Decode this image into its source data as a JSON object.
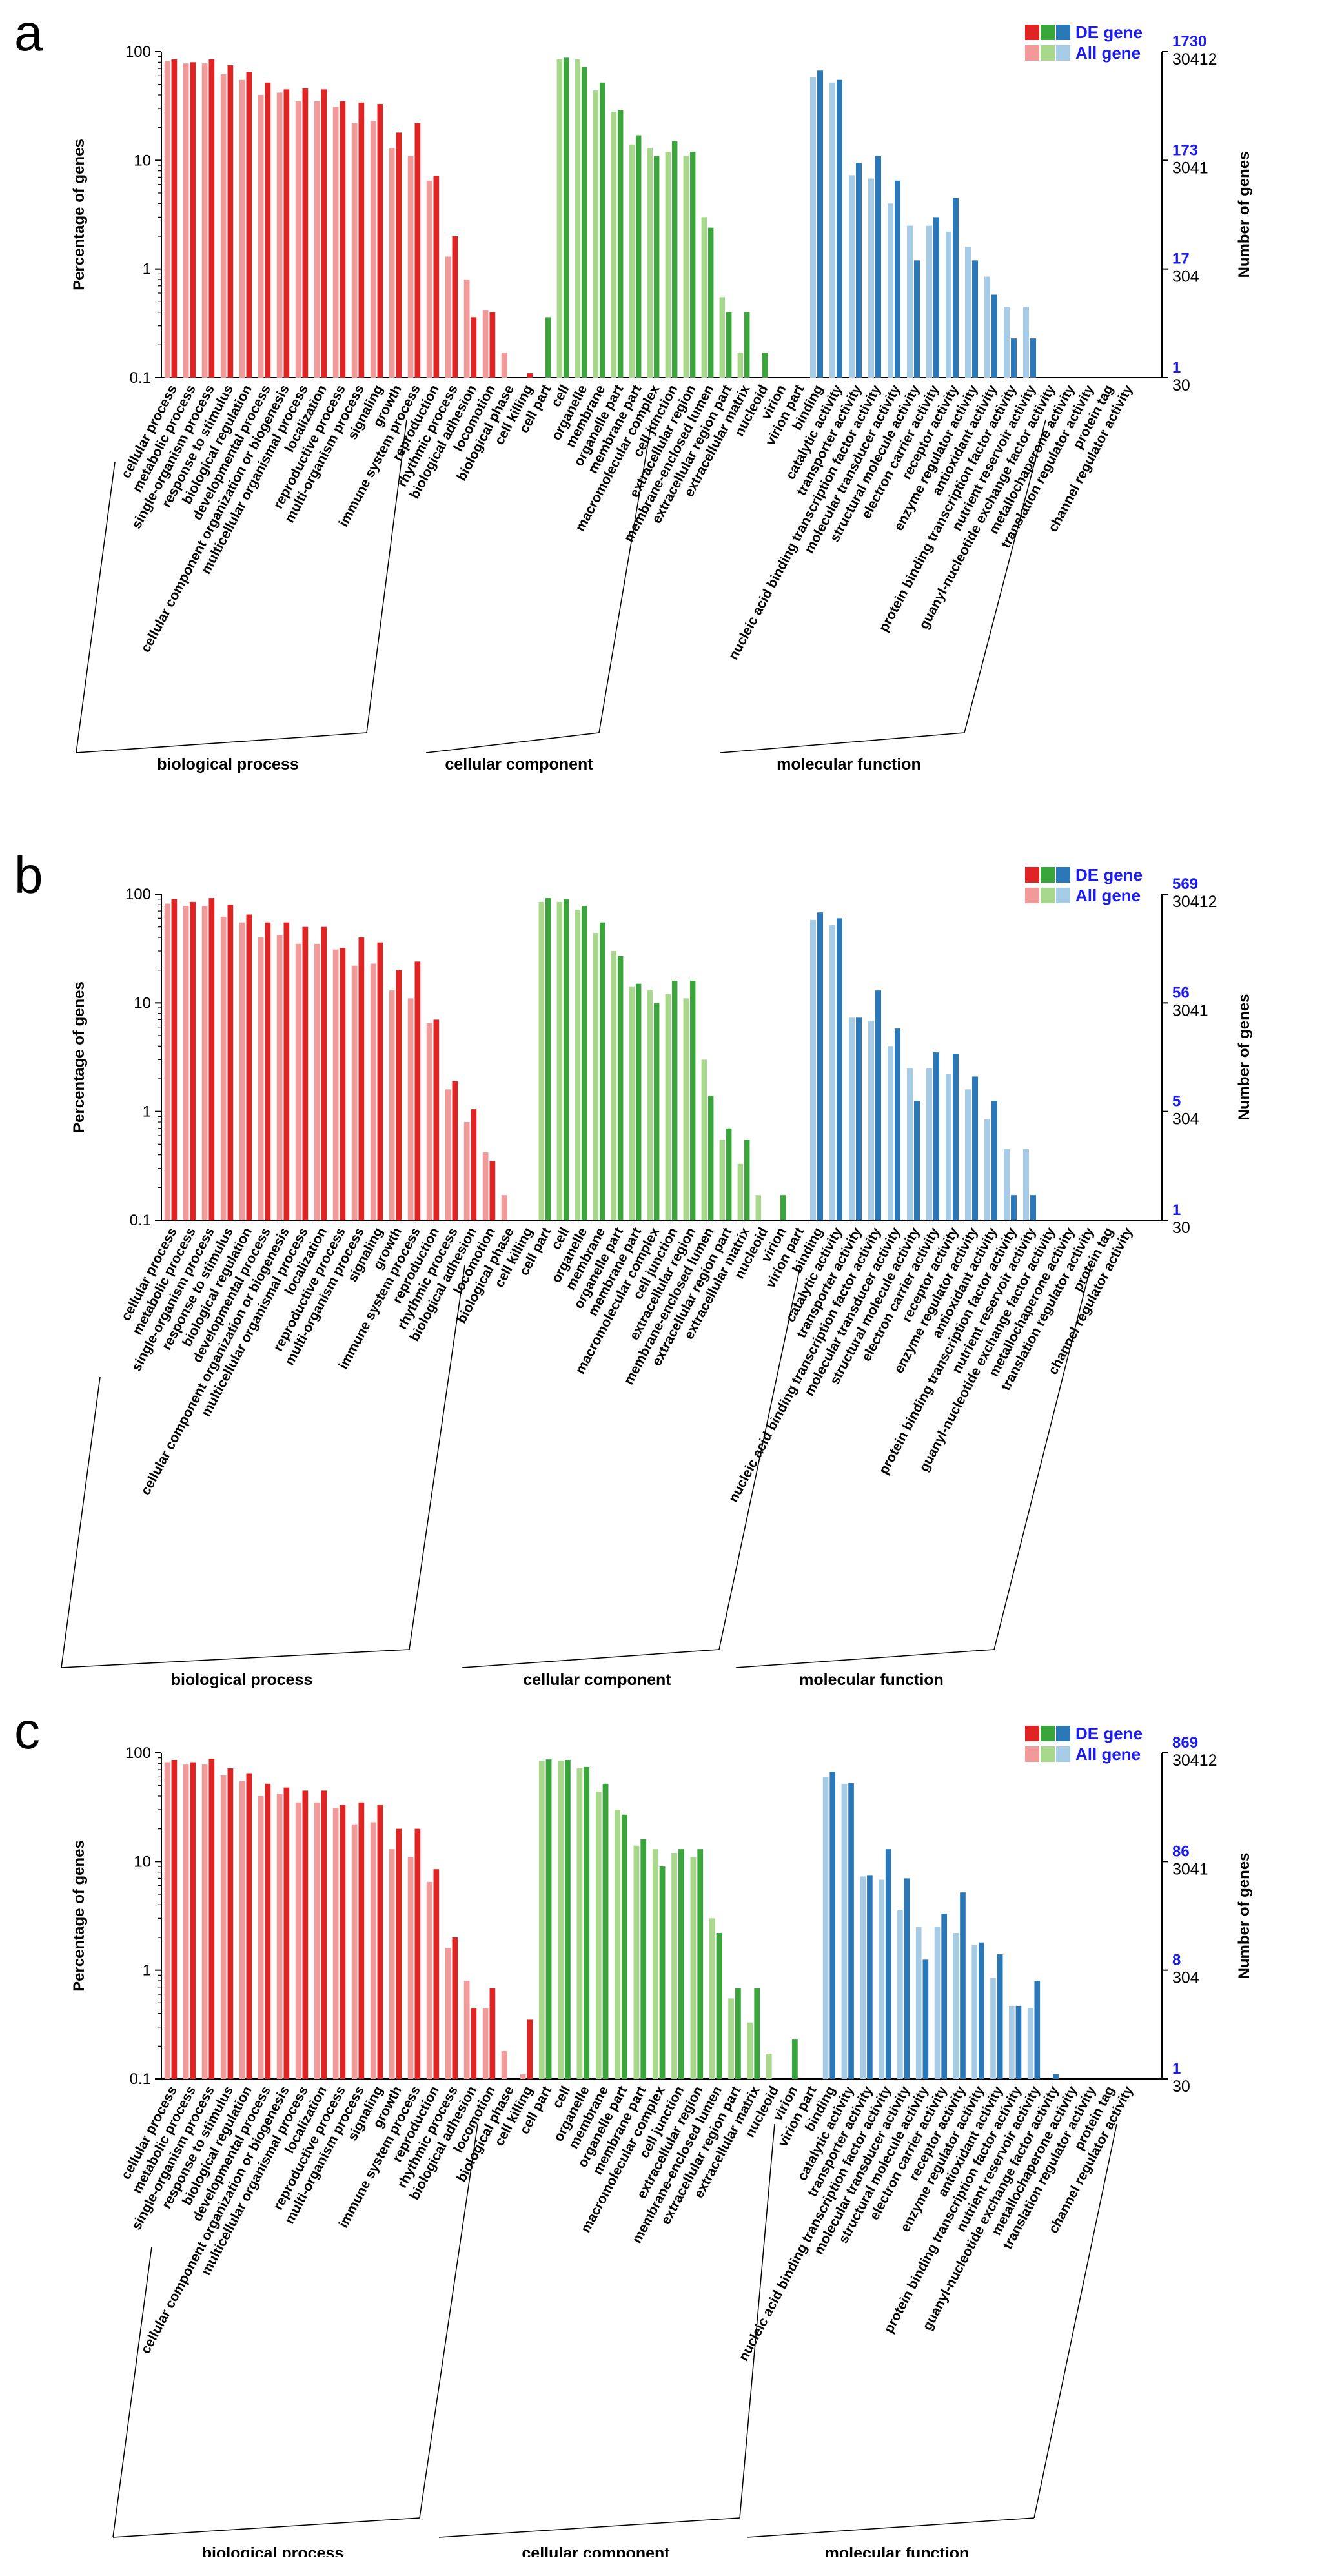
{
  "figure": {
    "colors": {
      "bp_de": "#e02424",
      "bp_all": "#f29a9a",
      "cc_de": "#3aa53a",
      "cc_all": "#a8d88c",
      "mf_de": "#2a78b8",
      "mf_all": "#a6cbe6",
      "legend_text": "#1c1cf0",
      "axis": "#000000"
    },
    "legend": {
      "de_label": "DE gene",
      "all_label": "All gene"
    },
    "left_axis_title": "Percentage of genes",
    "right_axis_title": "Number of genes",
    "left_ticks": [
      "100",
      "10",
      "1",
      "0.1"
    ],
    "all_gene_ticks": [
      "30412",
      "3041",
      "304",
      "30"
    ]
  },
  "chart_data": [
    {
      "type": "bar",
      "panel": "a",
      "title": "",
      "ylabel": "Percentage of genes",
      "y2label": "Number of genes",
      "yscale": "log",
      "ylim": [
        0.1,
        100
      ],
      "de_ticks": [
        "1730",
        "173",
        "17",
        "1"
      ],
      "groups": [
        {
          "name": "biological process",
          "key": "bp",
          "categories": [
            "cellular process",
            "metabolic process",
            "single-organism process",
            "response to stimulus",
            "biological regulation",
            "developmental process",
            "cellular component organization or biogenesis",
            "multicellular organismal process",
            "localization",
            "reproductive process",
            "multi-organism process",
            "signaling",
            "growth",
            "immune system process",
            "reproduction",
            "rhythmic process",
            "biological adhesion",
            "locomotion",
            "biological phase",
            "cell killing"
          ],
          "all": [
            82,
            78,
            78,
            62,
            55,
            40,
            42,
            35,
            35,
            31,
            22,
            23,
            13,
            11,
            6.5,
            1.3,
            0.8,
            0.42,
            0.17,
            0.1
          ],
          "de": [
            85,
            80,
            85,
            75,
            65,
            52,
            45,
            46,
            45,
            35,
            34,
            33,
            18,
            22,
            7.2,
            2.0,
            0.36,
            0.4,
            0,
            0.11
          ]
        },
        {
          "name": "cellular component",
          "key": "cc",
          "categories": [
            "cell part",
            "cell",
            "organelle",
            "membrane",
            "organelle part",
            "membrane part",
            "macromolecular complex",
            "cell junction",
            "extracellular region",
            "membrane-enclosed lumen",
            "extracellular region part",
            "extracellular matrix",
            "nucleoid",
            "virion",
            "virion part"
          ],
          "all": [
            0,
            85,
            85,
            44,
            28,
            14,
            13,
            12,
            11,
            3,
            0.55,
            0.17,
            0.1,
            0,
            0
          ],
          "de": [
            0.36,
            88,
            72,
            52,
            29,
            17,
            11,
            15,
            12,
            2.4,
            0.4,
            0.4,
            0.17,
            0,
            0
          ]
        },
        {
          "name": "molecular function",
          "key": "mf",
          "categories": [
            "binding",
            "catalytic activity",
            "transporter activity",
            "nucleic acid binding transcription factor activity",
            "molecular transducer activity",
            "structural molecule activity",
            "electron carrier activity",
            "receptor activity",
            "enzyme regulator activity",
            "antioxidant activity",
            "protein binding transcription factor activity",
            "nutrient reservoir activity",
            "guanyl-nucleotide exchange factor activity",
            "metallochaperone activity",
            "translation regulator activity",
            "protein tag",
            "channel regulator activity"
          ],
          "all": [
            58,
            52,
            7.3,
            6.8,
            4.0,
            2.5,
            2.5,
            2.2,
            1.6,
            0.85,
            0.45,
            0.45,
            0,
            0,
            0,
            0,
            0
          ],
          "de": [
            67,
            55,
            9.5,
            11,
            6.5,
            1.2,
            3.0,
            4.5,
            1.2,
            0.58,
            0.23,
            0.23,
            0,
            0,
            0,
            0,
            0
          ]
        }
      ]
    },
    {
      "type": "bar",
      "panel": "b",
      "title": "",
      "ylabel": "Percentage of genes",
      "y2label": "Number of genes",
      "yscale": "log",
      "ylim": [
        0.1,
        100
      ],
      "de_ticks": [
        "569",
        "56",
        "5",
        "1"
      ],
      "groups": [
        {
          "name": "biological process",
          "key": "bp",
          "categories": [
            "cellular process",
            "metabolic process",
            "single-organism process",
            "response to stimulus",
            "biological regulation",
            "developmental process",
            "cellular component organization or biogenesis",
            "multicellular organismal process",
            "localization",
            "reproductive process",
            "multi-organism process",
            "signaling",
            "growth",
            "immune system process",
            "reproduction",
            "rhythmic process",
            "biological adhesion",
            "locomotion",
            "biological phase",
            "cell killing"
          ],
          "all": [
            82,
            78,
            78,
            62,
            55,
            40,
            42,
            35,
            35,
            31,
            22,
            23,
            13,
            11,
            6.5,
            1.6,
            0.8,
            0.42,
            0.17,
            0
          ],
          "de": [
            90,
            85,
            92,
            80,
            65,
            55,
            55,
            50,
            50,
            32,
            40,
            36,
            20,
            24,
            7.0,
            1.9,
            1.05,
            0.35,
            0,
            0
          ]
        },
        {
          "name": "cellular component",
          "key": "cc",
          "categories": [
            "cell part",
            "cell",
            "organelle",
            "membrane",
            "organelle part",
            "membrane part",
            "macromolecular complex",
            "cell junction",
            "extracellular region",
            "membrane-enclosed lumen",
            "extracellular region part",
            "extracellular matrix",
            "nucleoid",
            "virion",
            "virion part"
          ],
          "all": [
            85,
            85,
            72,
            44,
            30,
            14,
            13,
            12,
            11,
            3,
            0.55,
            0.33,
            0.17,
            0,
            0
          ],
          "de": [
            92,
            90,
            78,
            55,
            27,
            15,
            10,
            16,
            16,
            1.4,
            0.7,
            0.55,
            0,
            0.17,
            0
          ]
        },
        {
          "name": "molecular function",
          "key": "mf",
          "categories": [
            "binding",
            "catalytic activity",
            "transporter activity",
            "nucleic acid binding transcription factor activity",
            "molecular transducer activity",
            "structural molecule activity",
            "electron carrier activity",
            "receptor activity",
            "enzyme regulator activity",
            "antioxidant activity",
            "protein binding transcription factor activity",
            "nutrient reservoir activity",
            "guanyl-nucleotide exchange factor activity",
            "metallochaperone activity",
            "translation regulator activity",
            "protein tag",
            "channel regulator activity"
          ],
          "all": [
            58,
            52,
            7.3,
            6.8,
            4.0,
            2.5,
            2.5,
            2.2,
            1.6,
            0.85,
            0.45,
            0.45,
            0.1,
            0,
            0,
            0,
            0
          ],
          "de": [
            68,
            60,
            7.3,
            13,
            5.8,
            1.25,
            3.5,
            3.4,
            2.1,
            1.25,
            0.17,
            0.17,
            0,
            0,
            0,
            0,
            0
          ]
        }
      ]
    },
    {
      "type": "bar",
      "panel": "c",
      "title": "",
      "ylabel": "Percentage of genes",
      "y2label": "Number of genes",
      "yscale": "log",
      "ylim": [
        0.1,
        100
      ],
      "de_ticks": [
        "869",
        "86",
        "8",
        "1"
      ],
      "groups": [
        {
          "name": "biological process",
          "key": "bp",
          "categories": [
            "cellular process",
            "metabolic process",
            "single-organism process",
            "response to stimulus",
            "biological regulation",
            "developmental process",
            "cellular component organization or biogenesis",
            "multicellular organismal process",
            "localization",
            "reproductive process",
            "multi-organism process",
            "signaling",
            "growth",
            "immune system process",
            "reproduction",
            "rhythmic process",
            "biological adhesion",
            "locomotion",
            "biological phase",
            "cell killing"
          ],
          "all": [
            82,
            78,
            78,
            62,
            55,
            40,
            42,
            35,
            35,
            31,
            22,
            23,
            13,
            11,
            6.5,
            1.6,
            0.8,
            0.45,
            0.18,
            0.11
          ],
          "de": [
            86,
            82,
            88,
            72,
            65,
            52,
            48,
            45,
            45,
            33,
            35,
            33,
            20,
            20,
            8.5,
            2.0,
            0.45,
            0.68,
            0,
            0.35
          ]
        },
        {
          "name": "cellular component",
          "key": "cc",
          "categories": [
            "cell part",
            "cell",
            "organelle",
            "membrane",
            "organelle part",
            "membrane part",
            "macromolecular complex",
            "cell junction",
            "extracellular region",
            "membrane-enclosed lumen",
            "extracellular region part",
            "extracellular matrix",
            "nucleoid",
            "virion",
            "virion part"
          ],
          "all": [
            85,
            85,
            72,
            44,
            30,
            14,
            13,
            12,
            11,
            3,
            0.55,
            0.33,
            0.17,
            0,
            0
          ],
          "de": [
            87,
            86,
            74,
            52,
            27,
            16,
            9,
            13,
            13,
            2.2,
            0.68,
            0.68,
            0,
            0.23,
            0
          ]
        },
        {
          "name": "molecular function",
          "key": "mf",
          "categories": [
            "binding",
            "catalytic activity",
            "transporter activity",
            "nucleic acid binding transcription factor activity",
            "molecular transducer activity",
            "structural molecule activity",
            "electron carrier activity",
            "receptor activity",
            "enzyme regulator activity",
            "antioxidant activity",
            "protein binding transcription factor activity",
            "nutrient reservoir activity",
            "guanyl-nucleotide exchange factor activity",
            "metallochaperone activity",
            "translation regulator activity",
            "protein tag",
            "channel regulator activity"
          ],
          "all": [
            60,
            52,
            7.3,
            6.8,
            3.6,
            2.5,
            2.5,
            2.2,
            1.7,
            0.85,
            0.47,
            0.45,
            0.1,
            0,
            0,
            0,
            0
          ],
          "de": [
            67,
            53,
            7.5,
            13,
            7.0,
            1.25,
            3.3,
            5.2,
            1.8,
            1.4,
            0.47,
            0.8,
            0.11,
            0,
            0,
            0,
            0
          ]
        }
      ]
    }
  ]
}
